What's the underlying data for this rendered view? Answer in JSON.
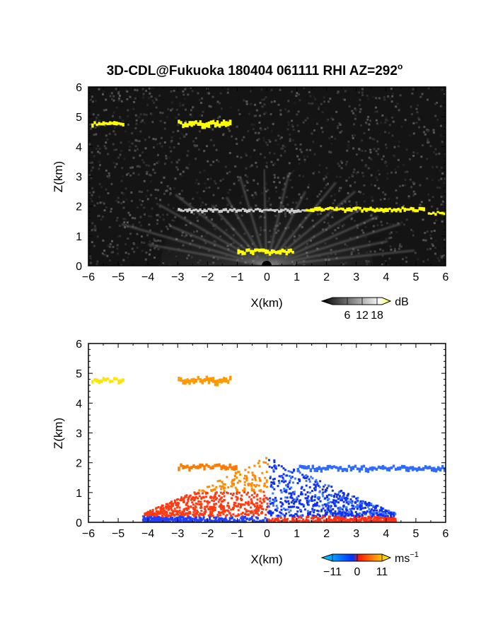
{
  "chart_data": [
    {
      "type": "heatmap",
      "title": "3D-CDL@Fukuoka 180404 061111 RHI AZ=292",
      "title_superscript": "o",
      "xlabel": "X(km)",
      "ylabel": "Z(km)",
      "xlim": [
        -6,
        6
      ],
      "ylim": [
        0,
        6
      ],
      "xticks": [
        "-6",
        "-5",
        "-4",
        "-3",
        "-2",
        "-1",
        "0",
        "1",
        "2",
        "3",
        "4",
        "5",
        "6"
      ],
      "yticks": [
        "0",
        "1",
        "2",
        "3",
        "4",
        "5",
        "6"
      ],
      "background": "#111111",
      "colorbar": {
        "unit": "dB",
        "ticks": [
          "6",
          "12",
          "18"
        ],
        "range": [
          0,
          20
        ],
        "colors": [
          "#000000",
          "#ffffff",
          "#ffff00"
        ]
      },
      "features": [
        {
          "kind": "layer",
          "x": [
            -5.9,
            -4.8
          ],
          "z": 4.75,
          "thickness": 0.12,
          "color": "#ffff00"
        },
        {
          "kind": "layer",
          "x": [
            -3.0,
            -1.2
          ],
          "z": 4.75,
          "thickness": 0.18,
          "color": "#ffff00"
        },
        {
          "kind": "layer",
          "x": [
            1.3,
            5.3
          ],
          "z": 1.88,
          "thickness": 0.12,
          "color": "#ffff00"
        },
        {
          "kind": "layer",
          "x": [
            5.4,
            6.0
          ],
          "z": 1.75,
          "thickness": 0.1,
          "color": "#ffff00"
        },
        {
          "kind": "layer",
          "x": [
            -3.0,
            1.3
          ],
          "z": 1.85,
          "thickness": 0.1,
          "color": "#cccccc"
        },
        {
          "kind": "layer",
          "x": [
            -1.0,
            0.9
          ],
          "z": 0.45,
          "thickness": 0.15,
          "color": "#ffff00"
        }
      ]
    },
    {
      "type": "heatmap",
      "xlabel": "X(km)",
      "ylabel": "Z(km)",
      "xlim": [
        -6,
        6
      ],
      "ylim": [
        0,
        6
      ],
      "xticks": [
        "-6",
        "-5",
        "-4",
        "-3",
        "-2",
        "-1",
        "0",
        "1",
        "2",
        "3",
        "4",
        "5",
        "6"
      ],
      "yticks": [
        "0",
        "1",
        "2",
        "3",
        "4",
        "5",
        "6"
      ],
      "background": "#ffffff",
      "colorbar": {
        "unit": "ms",
        "unit_superscript": "−1",
        "ticks": [
          "−11",
          "0",
          "11"
        ],
        "range": [
          -11,
          11
        ],
        "colors": [
          "#00d0ff",
          "#0030ff",
          "#ff2000",
          "#ffff00"
        ]
      },
      "features": [
        {
          "kind": "layer",
          "x": [
            -5.9,
            -4.8
          ],
          "z": 4.75,
          "thickness": 0.15,
          "color": "#ffe600"
        },
        {
          "kind": "layer",
          "x": [
            -3.0,
            -1.2
          ],
          "z": 4.75,
          "thickness": 0.2,
          "color": "#ff9a00"
        },
        {
          "kind": "layer",
          "x": [
            -3.0,
            -1.0
          ],
          "z": 1.85,
          "thickness": 0.15,
          "color": "#ff7a00"
        },
        {
          "kind": "layer",
          "x": [
            1.0,
            6.0
          ],
          "z": 1.8,
          "thickness": 0.15,
          "color": "#2f6bff"
        },
        {
          "kind": "region",
          "x": [
            -4.2,
            0.0
          ],
          "z": [
            0.05,
            2.3
          ],
          "color": "#ff4a10"
        },
        {
          "kind": "region",
          "x": [
            0.0,
            4.3
          ],
          "z": [
            0.05,
            2.3
          ],
          "color": "#1e50ff"
        }
      ]
    }
  ]
}
